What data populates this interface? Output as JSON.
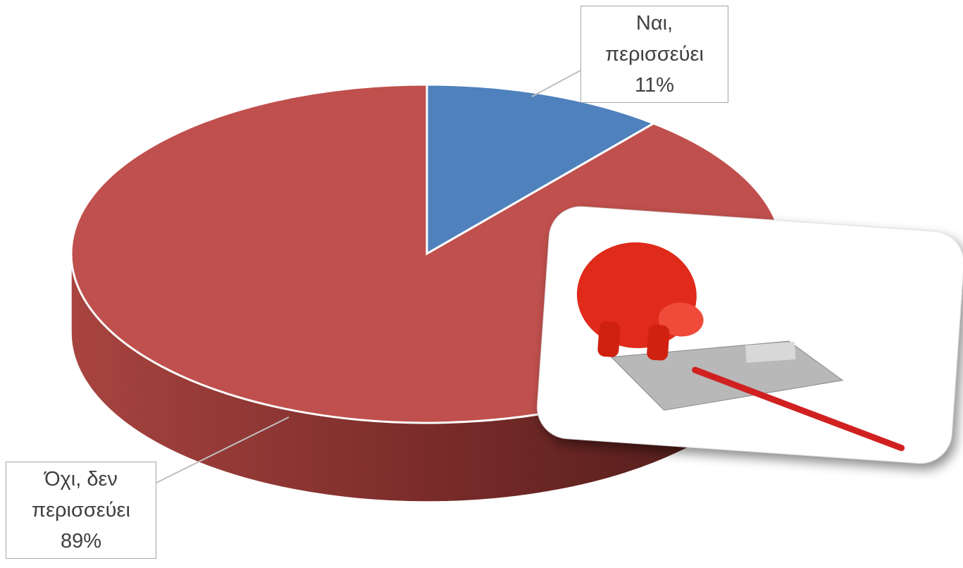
{
  "chart_data": {
    "type": "pie",
    "categories": [
      "Ναι, περισσεύει",
      "Όχι, δεν περισσεύει"
    ],
    "values": [
      11,
      89
    ],
    "value_labels": [
      "11%",
      "89%"
    ],
    "colors": [
      "#4f81bd",
      "#c0504d"
    ]
  }
}
